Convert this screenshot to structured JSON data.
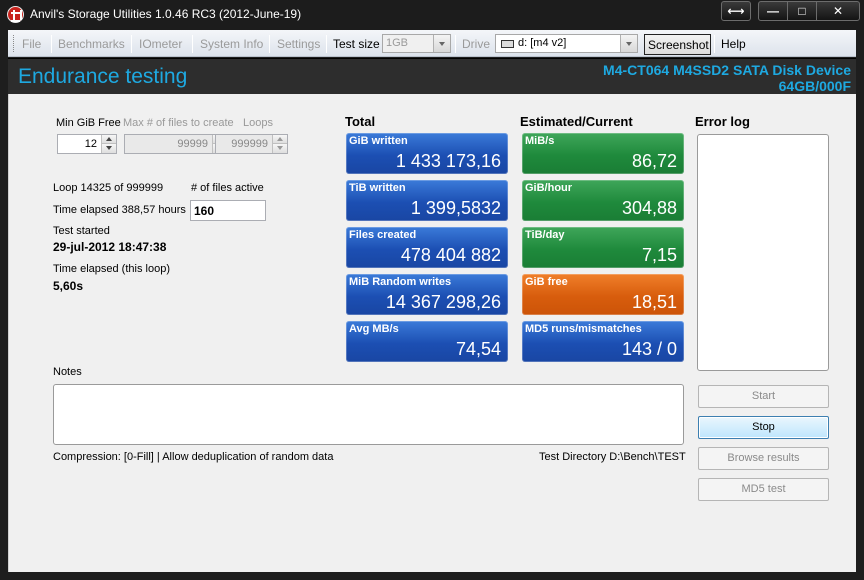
{
  "window": {
    "title": "Anvil's Storage Utilities 1.0.46 RC3 (2012-June-19)",
    "controls": [
      "⟷",
      "—",
      "□",
      "✕"
    ]
  },
  "menu": {
    "file": "File",
    "benchmarks": "Benchmarks",
    "iometer": "IOmeter",
    "system_info": "System Info",
    "settings": "Settings",
    "test_size_label": "Test size",
    "test_size_value": "1GB",
    "drive_label": "Drive",
    "drive_value": "d: [m4 v2]",
    "screenshot": "Screenshot",
    "help": "Help"
  },
  "header": {
    "title": "Endurance testing",
    "device_line1": "M4-CT064 M4SSD2 SATA Disk Device",
    "device_line2": "64GB/000F"
  },
  "settings": {
    "min_gib_free_label": "Min GiB Free",
    "min_gib_free_value": "12",
    "max_files_label": "Max # of files to create",
    "max_files_value": "99999",
    "loops_label": "Loops",
    "loops_value": "999999"
  },
  "status": {
    "loop": "Loop 14325 of 999999",
    "files_active_label": "# of files active",
    "files_active_value": "160",
    "time_elapsed": "Time elapsed 388,57 hours",
    "test_started_label": "Test started",
    "test_started_value": "29-jul-2012 18:47:38",
    "loop_elapsed_label": "Time elapsed (this loop)",
    "loop_elapsed_value": "5,60s"
  },
  "sections": {
    "total": "Total",
    "estimated": "Estimated/Current",
    "error_log": "Error log",
    "notes": "Notes"
  },
  "totals": [
    {
      "label": "GiB written",
      "value": "1 433 173,16"
    },
    {
      "label": "TiB written",
      "value": "1 399,5832"
    },
    {
      "label": "Files created",
      "value": "478 404 882"
    },
    {
      "label": "MiB Random writes",
      "value": "14 367 298,26"
    },
    {
      "label": "Avg MB/s",
      "value": "74,54"
    }
  ],
  "current": [
    {
      "label": "MiB/s",
      "value": "86,72"
    },
    {
      "label": "GiB/hour",
      "value": "304,88"
    },
    {
      "label": "TiB/day",
      "value": "7,15"
    },
    {
      "label": "GiB free",
      "value": "18,51"
    },
    {
      "label": "MD5 runs/mismatches",
      "value": "143 / 0"
    }
  ],
  "buttons": {
    "start": "Start",
    "stop": "Stop",
    "browse": "Browse results",
    "md5": "MD5 test"
  },
  "footer": {
    "compression": "Compression: [0-Fill] | Allow deduplication of random data",
    "test_directory": "Test Directory D:\\Bench\\TEST"
  },
  "colors": {
    "accent_cyan": "#1ea9e1",
    "tile_blue": "#1c4fb3",
    "tile_green": "#1f8a3c",
    "tile_orange": "#d85d0d"
  }
}
